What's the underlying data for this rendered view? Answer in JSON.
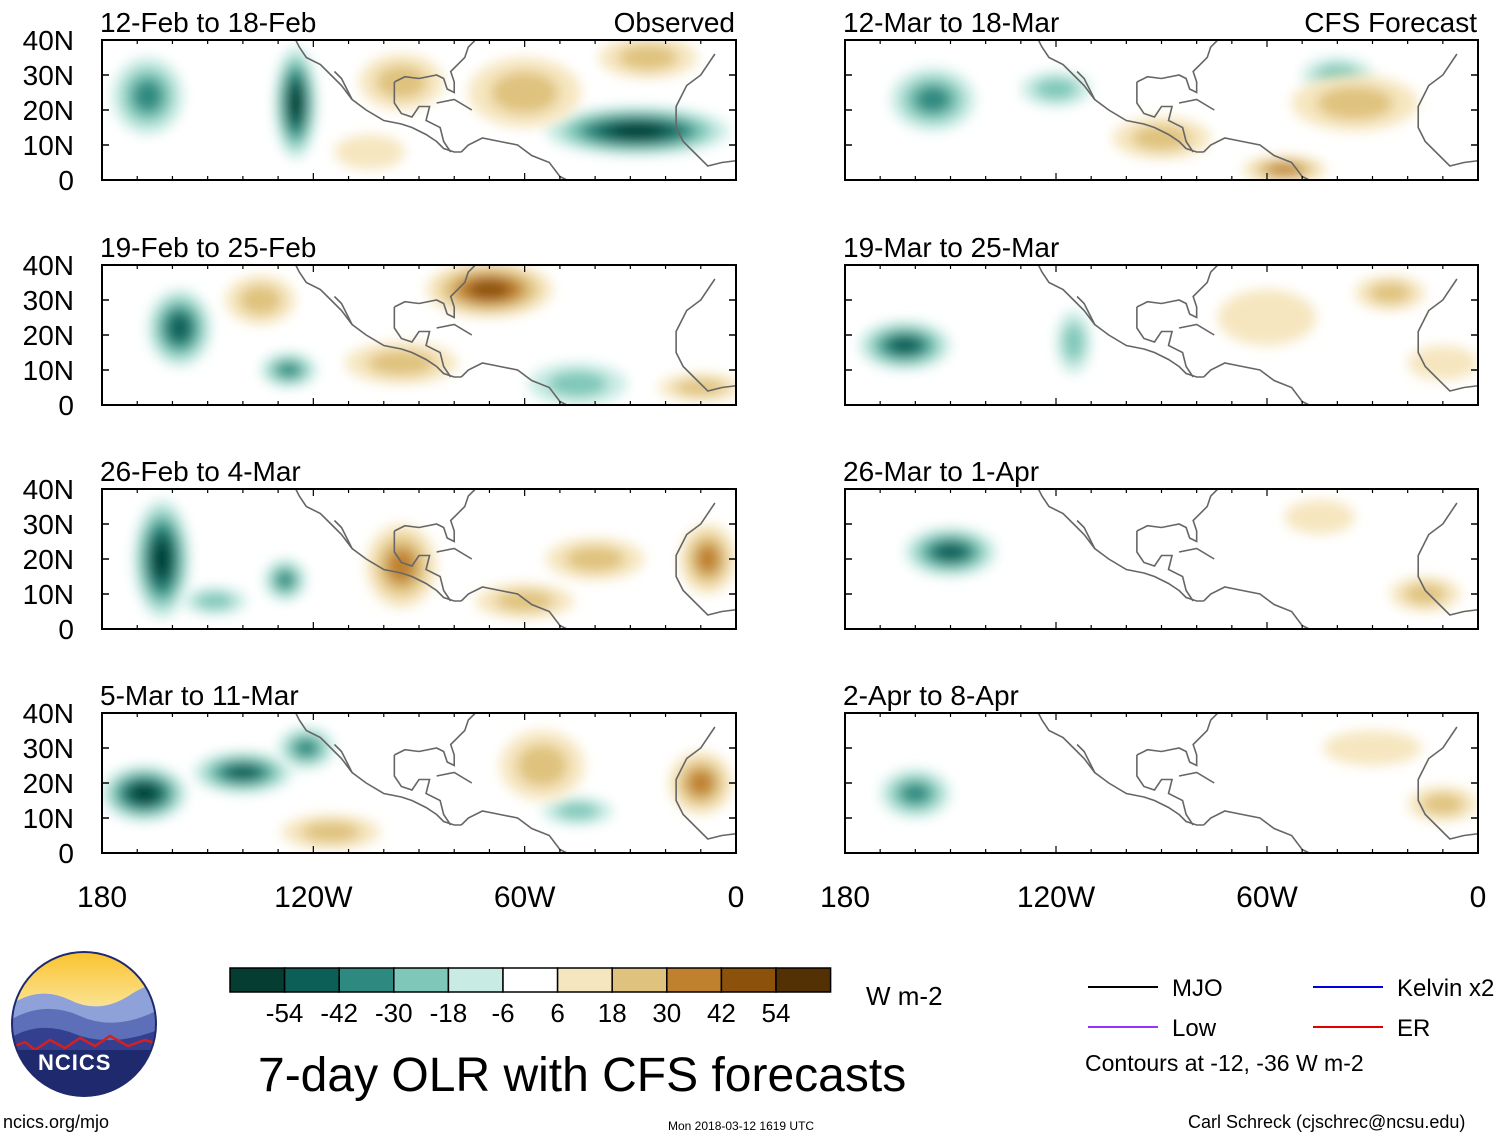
{
  "chart_data": {
    "type": "heatmap",
    "title": "7-day OLR with CFS forecasts",
    "units": "W m-2",
    "contour_note": "Contours at -12, -36 W m-2",
    "column_headers": {
      "observed": "Observed",
      "forecast": "CFS Forecast"
    },
    "y_ticks": [
      "40N",
      "30N",
      "20N",
      "10N",
      "0"
    ],
    "x_ticks": [
      "180",
      "120W",
      "60W",
      "0"
    ],
    "colorbar": {
      "tick_labels": [
        "-54",
        "-42",
        "-30",
        "-18",
        "-6",
        "6",
        "18",
        "30",
        "42",
        "54"
      ],
      "colors": [
        "#053d33",
        "#0c5f57",
        "#2e8a80",
        "#7fc8b9",
        "#c8ebe3",
        "#ffffff",
        "#f6e6bf",
        "#dfc27d",
        "#bf812d",
        "#8c510a",
        "#543005"
      ]
    },
    "legend": [
      {
        "label": "MJO",
        "color": "#000000"
      },
      {
        "label": "Kelvin x2",
        "color": "#0000dd"
      },
      {
        "label": "Low",
        "color": "#9b30ff"
      },
      {
        "label": "ER",
        "color": "#e00000"
      }
    ],
    "panels": [
      {
        "period": "12-Feb to 18-Feb",
        "column": "observed",
        "blobs": [
          {
            "lon": -167,
            "lat": 24,
            "rx": 10,
            "ry": 11,
            "v": -30
          },
          {
            "lon": -125,
            "lat": 22,
            "rx": 6,
            "ry": 16,
            "v": -54
          },
          {
            "lon": -28,
            "lat": 14,
            "rx": 26,
            "ry": 7,
            "v": -54
          },
          {
            "lon": -104,
            "lat": 8,
            "rx": 10,
            "ry": 5,
            "v": 6
          },
          {
            "lon": -95,
            "lat": 28,
            "rx": 12,
            "ry": 8,
            "v": 18
          },
          {
            "lon": -60,
            "lat": 25,
            "rx": 16,
            "ry": 10,
            "v": 18
          },
          {
            "lon": -25,
            "lat": 35,
            "rx": 14,
            "ry": 6,
            "v": 18
          }
        ]
      },
      {
        "period": "19-Feb to 25-Feb",
        "column": "observed",
        "blobs": [
          {
            "lon": -158,
            "lat": 22,
            "rx": 9,
            "ry": 11,
            "v": -42
          },
          {
            "lon": -127,
            "lat": 10,
            "rx": 8,
            "ry": 5,
            "v": -30
          },
          {
            "lon": -45,
            "lat": 6,
            "rx": 14,
            "ry": 6,
            "v": -18
          },
          {
            "lon": -70,
            "lat": 33,
            "rx": 18,
            "ry": 8,
            "v": 42
          },
          {
            "lon": -135,
            "lat": 30,
            "rx": 10,
            "ry": 7,
            "v": 18
          },
          {
            "lon": -95,
            "lat": 12,
            "rx": 16,
            "ry": 6,
            "v": 18
          },
          {
            "lon": -10,
            "lat": 5,
            "rx": 12,
            "ry": 4,
            "v": 18
          }
        ]
      },
      {
        "period": "26-Feb to 4-Mar",
        "column": "observed",
        "blobs": [
          {
            "lon": -163,
            "lat": 20,
            "rx": 8,
            "ry": 17,
            "v": -54
          },
          {
            "lon": -128,
            "lat": 14,
            "rx": 6,
            "ry": 6,
            "v": -30
          },
          {
            "lon": -148,
            "lat": 8,
            "rx": 9,
            "ry": 4,
            "v": -18
          },
          {
            "lon": -95,
            "lat": 18,
            "rx": 10,
            "ry": 12,
            "v": 30
          },
          {
            "lon": -40,
            "lat": 20,
            "rx": 14,
            "ry": 6,
            "v": 18
          },
          {
            "lon": -60,
            "lat": 8,
            "rx": 14,
            "ry": 5,
            "v": 18
          },
          {
            "lon": -8,
            "lat": 20,
            "rx": 8,
            "ry": 10,
            "v": 30
          }
        ]
      },
      {
        "period": "5-Mar to 11-Mar",
        "column": "observed",
        "blobs": [
          {
            "lon": -168,
            "lat": 17,
            "rx": 12,
            "ry": 8,
            "v": -54
          },
          {
            "lon": -140,
            "lat": 23,
            "rx": 14,
            "ry": 6,
            "v": -42
          },
          {
            "lon": -122,
            "lat": 30,
            "rx": 8,
            "ry": 6,
            "v": -30
          },
          {
            "lon": -45,
            "lat": 12,
            "rx": 10,
            "ry": 4,
            "v": -18
          },
          {
            "lon": -55,
            "lat": 25,
            "rx": 12,
            "ry": 10,
            "v": 18
          },
          {
            "lon": -10,
            "lat": 20,
            "rx": 9,
            "ry": 9,
            "v": 30
          },
          {
            "lon": -115,
            "lat": 6,
            "rx": 14,
            "ry": 5,
            "v": 18
          }
        ]
      },
      {
        "period": "12-Mar to 18-Mar",
        "column": "forecast",
        "blobs": [
          {
            "lon": -155,
            "lat": 23,
            "rx": 12,
            "ry": 9,
            "v": -30
          },
          {
            "lon": -120,
            "lat": 26,
            "rx": 10,
            "ry": 5,
            "v": -18
          },
          {
            "lon": -40,
            "lat": 30,
            "rx": 10,
            "ry": 5,
            "v": -18
          },
          {
            "lon": -90,
            "lat": 12,
            "rx": 14,
            "ry": 6,
            "v": 18
          },
          {
            "lon": -35,
            "lat": 22,
            "rx": 18,
            "ry": 8,
            "v": 18
          },
          {
            "lon": -55,
            "lat": 3,
            "rx": 12,
            "ry": 4,
            "v": 30
          }
        ]
      },
      {
        "period": "19-Mar to 25-Mar",
        "column": "forecast",
        "blobs": [
          {
            "lon": -163,
            "lat": 17,
            "rx": 13,
            "ry": 7,
            "v": -42
          },
          {
            "lon": -115,
            "lat": 18,
            "rx": 5,
            "ry": 9,
            "v": -18
          },
          {
            "lon": -60,
            "lat": 25,
            "rx": 14,
            "ry": 8,
            "v": 6
          },
          {
            "lon": -25,
            "lat": 32,
            "rx": 10,
            "ry": 5,
            "v": 18
          },
          {
            "lon": -10,
            "lat": 12,
            "rx": 10,
            "ry": 5,
            "v": 6
          }
        ]
      },
      {
        "period": "26-Mar to 1-Apr",
        "column": "forecast",
        "blobs": [
          {
            "lon": -150,
            "lat": 22,
            "rx": 13,
            "ry": 7,
            "v": -42
          },
          {
            "lon": -45,
            "lat": 32,
            "rx": 10,
            "ry": 5,
            "v": 6
          },
          {
            "lon": -15,
            "lat": 10,
            "rx": 10,
            "ry": 5,
            "v": 18
          }
        ]
      },
      {
        "period": "2-Apr to 8-Apr",
        "column": "forecast",
        "blobs": [
          {
            "lon": -160,
            "lat": 17,
            "rx": 10,
            "ry": 7,
            "v": -30
          },
          {
            "lon": -30,
            "lat": 30,
            "rx": 14,
            "ry": 5,
            "v": 6
          },
          {
            "lon": -10,
            "lat": 14,
            "rx": 10,
            "ry": 5,
            "v": 18
          }
        ]
      }
    ]
  },
  "logo": {
    "text": "NCICS"
  },
  "footer": {
    "left": "ncics.org/mjo",
    "date": "Mon 2018-03-12 1619 UTC",
    "right": "Carl Schreck (cjschrec@ncsu.edu)"
  }
}
